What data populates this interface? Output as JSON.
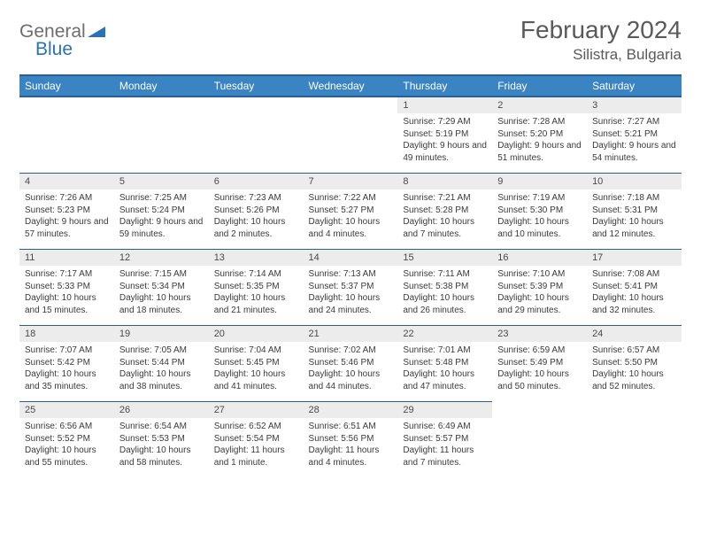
{
  "logo": {
    "text1": "General",
    "text2": "Blue"
  },
  "header": {
    "title": "February 2024",
    "location": "Silistra, Bulgaria"
  },
  "colors": {
    "header_bg": "#3a84c4",
    "header_border": "#2a5f8f",
    "daynum_bg": "#ececec",
    "text_dark": "#3a3a3a",
    "text_muted": "#5a5a5a",
    "logo_gray": "#6d6d6d",
    "logo_blue": "#2a72b5"
  },
  "layout": {
    "columns": 7,
    "rows": 5,
    "font_family": "Arial"
  },
  "weekdays": [
    "Sunday",
    "Monday",
    "Tuesday",
    "Wednesday",
    "Thursday",
    "Friday",
    "Saturday"
  ],
  "days": [
    {
      "n": "",
      "sunrise": "",
      "sunset": "",
      "daylight": ""
    },
    {
      "n": "",
      "sunrise": "",
      "sunset": "",
      "daylight": ""
    },
    {
      "n": "",
      "sunrise": "",
      "sunset": "",
      "daylight": ""
    },
    {
      "n": "",
      "sunrise": "",
      "sunset": "",
      "daylight": ""
    },
    {
      "n": "1",
      "sunrise": "Sunrise: 7:29 AM",
      "sunset": "Sunset: 5:19 PM",
      "daylight": "Daylight: 9 hours and 49 minutes."
    },
    {
      "n": "2",
      "sunrise": "Sunrise: 7:28 AM",
      "sunset": "Sunset: 5:20 PM",
      "daylight": "Daylight: 9 hours and 51 minutes."
    },
    {
      "n": "3",
      "sunrise": "Sunrise: 7:27 AM",
      "sunset": "Sunset: 5:21 PM",
      "daylight": "Daylight: 9 hours and 54 minutes."
    },
    {
      "n": "4",
      "sunrise": "Sunrise: 7:26 AM",
      "sunset": "Sunset: 5:23 PM",
      "daylight": "Daylight: 9 hours and 57 minutes."
    },
    {
      "n": "5",
      "sunrise": "Sunrise: 7:25 AM",
      "sunset": "Sunset: 5:24 PM",
      "daylight": "Daylight: 9 hours and 59 minutes."
    },
    {
      "n": "6",
      "sunrise": "Sunrise: 7:23 AM",
      "sunset": "Sunset: 5:26 PM",
      "daylight": "Daylight: 10 hours and 2 minutes."
    },
    {
      "n": "7",
      "sunrise": "Sunrise: 7:22 AM",
      "sunset": "Sunset: 5:27 PM",
      "daylight": "Daylight: 10 hours and 4 minutes."
    },
    {
      "n": "8",
      "sunrise": "Sunrise: 7:21 AM",
      "sunset": "Sunset: 5:28 PM",
      "daylight": "Daylight: 10 hours and 7 minutes."
    },
    {
      "n": "9",
      "sunrise": "Sunrise: 7:19 AM",
      "sunset": "Sunset: 5:30 PM",
      "daylight": "Daylight: 10 hours and 10 minutes."
    },
    {
      "n": "10",
      "sunrise": "Sunrise: 7:18 AM",
      "sunset": "Sunset: 5:31 PM",
      "daylight": "Daylight: 10 hours and 12 minutes."
    },
    {
      "n": "11",
      "sunrise": "Sunrise: 7:17 AM",
      "sunset": "Sunset: 5:33 PM",
      "daylight": "Daylight: 10 hours and 15 minutes."
    },
    {
      "n": "12",
      "sunrise": "Sunrise: 7:15 AM",
      "sunset": "Sunset: 5:34 PM",
      "daylight": "Daylight: 10 hours and 18 minutes."
    },
    {
      "n": "13",
      "sunrise": "Sunrise: 7:14 AM",
      "sunset": "Sunset: 5:35 PM",
      "daylight": "Daylight: 10 hours and 21 minutes."
    },
    {
      "n": "14",
      "sunrise": "Sunrise: 7:13 AM",
      "sunset": "Sunset: 5:37 PM",
      "daylight": "Daylight: 10 hours and 24 minutes."
    },
    {
      "n": "15",
      "sunrise": "Sunrise: 7:11 AM",
      "sunset": "Sunset: 5:38 PM",
      "daylight": "Daylight: 10 hours and 26 minutes."
    },
    {
      "n": "16",
      "sunrise": "Sunrise: 7:10 AM",
      "sunset": "Sunset: 5:39 PM",
      "daylight": "Daylight: 10 hours and 29 minutes."
    },
    {
      "n": "17",
      "sunrise": "Sunrise: 7:08 AM",
      "sunset": "Sunset: 5:41 PM",
      "daylight": "Daylight: 10 hours and 32 minutes."
    },
    {
      "n": "18",
      "sunrise": "Sunrise: 7:07 AM",
      "sunset": "Sunset: 5:42 PM",
      "daylight": "Daylight: 10 hours and 35 minutes."
    },
    {
      "n": "19",
      "sunrise": "Sunrise: 7:05 AM",
      "sunset": "Sunset: 5:44 PM",
      "daylight": "Daylight: 10 hours and 38 minutes."
    },
    {
      "n": "20",
      "sunrise": "Sunrise: 7:04 AM",
      "sunset": "Sunset: 5:45 PM",
      "daylight": "Daylight: 10 hours and 41 minutes."
    },
    {
      "n": "21",
      "sunrise": "Sunrise: 7:02 AM",
      "sunset": "Sunset: 5:46 PM",
      "daylight": "Daylight: 10 hours and 44 minutes."
    },
    {
      "n": "22",
      "sunrise": "Sunrise: 7:01 AM",
      "sunset": "Sunset: 5:48 PM",
      "daylight": "Daylight: 10 hours and 47 minutes."
    },
    {
      "n": "23",
      "sunrise": "Sunrise: 6:59 AM",
      "sunset": "Sunset: 5:49 PM",
      "daylight": "Daylight: 10 hours and 50 minutes."
    },
    {
      "n": "24",
      "sunrise": "Sunrise: 6:57 AM",
      "sunset": "Sunset: 5:50 PM",
      "daylight": "Daylight: 10 hours and 52 minutes."
    },
    {
      "n": "25",
      "sunrise": "Sunrise: 6:56 AM",
      "sunset": "Sunset: 5:52 PM",
      "daylight": "Daylight: 10 hours and 55 minutes."
    },
    {
      "n": "26",
      "sunrise": "Sunrise: 6:54 AM",
      "sunset": "Sunset: 5:53 PM",
      "daylight": "Daylight: 10 hours and 58 minutes."
    },
    {
      "n": "27",
      "sunrise": "Sunrise: 6:52 AM",
      "sunset": "Sunset: 5:54 PM",
      "daylight": "Daylight: 11 hours and 1 minute."
    },
    {
      "n": "28",
      "sunrise": "Sunrise: 6:51 AM",
      "sunset": "Sunset: 5:56 PM",
      "daylight": "Daylight: 11 hours and 4 minutes."
    },
    {
      "n": "29",
      "sunrise": "Sunrise: 6:49 AM",
      "sunset": "Sunset: 5:57 PM",
      "daylight": "Daylight: 11 hours and 7 minutes."
    },
    {
      "n": "",
      "sunrise": "",
      "sunset": "",
      "daylight": ""
    },
    {
      "n": "",
      "sunrise": "",
      "sunset": "",
      "daylight": ""
    }
  ]
}
